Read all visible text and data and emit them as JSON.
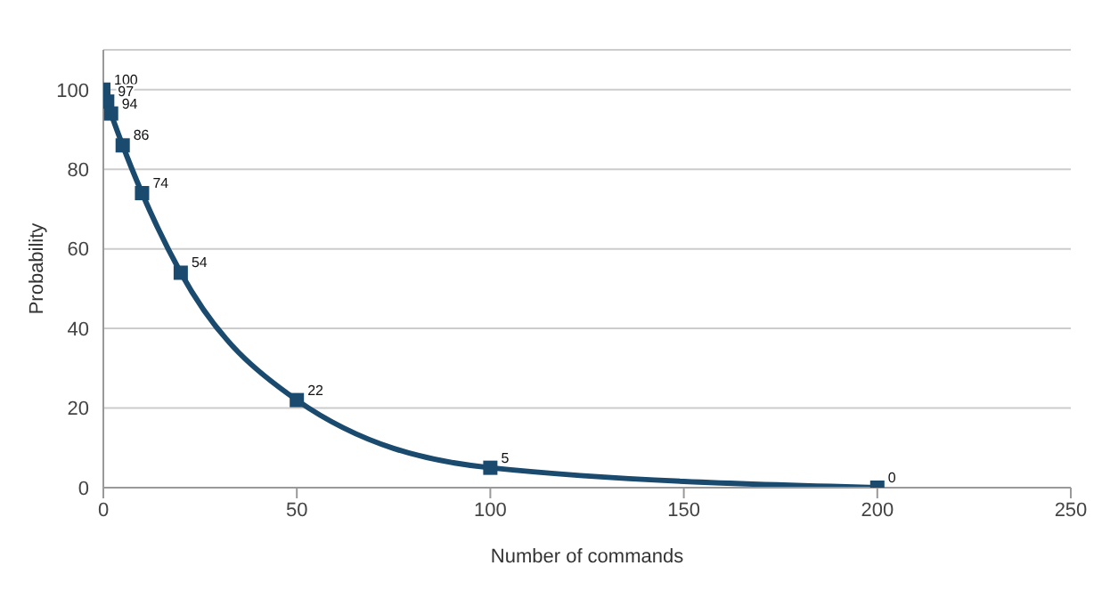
{
  "chart_data": {
    "type": "line",
    "xlabel": "Number of commands",
    "ylabel": "Probability",
    "x": [
      0,
      1,
      2,
      5,
      10,
      20,
      50,
      100,
      200
    ],
    "series": [
      {
        "color": "#1a4a6e",
        "values": [
          100,
          97,
          94,
          86,
          74,
          54,
          22,
          5,
          0
        ]
      }
    ],
    "xlim": [
      0,
      250
    ],
    "xticks": [
      0,
      50,
      100,
      150,
      200,
      250
    ],
    "ylim": [
      0,
      110
    ],
    "yticks": [
      0,
      20,
      40,
      60,
      80,
      100
    ],
    "grid": "y",
    "marker": "square",
    "data_labels": true
  }
}
